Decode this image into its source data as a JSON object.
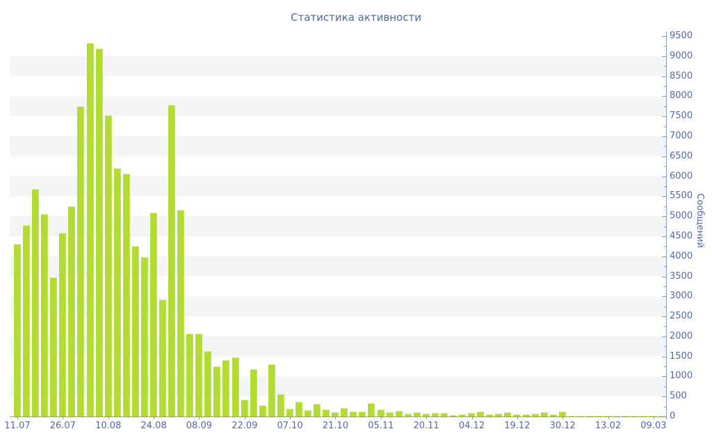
{
  "title": "Статистика активности",
  "colors": {
    "bar": "#b2dc33",
    "bar_highlight": "#cdea72",
    "text_blue": "#5168a8",
    "title_blue": "#4b68a7",
    "axis_line": "#8a97c0",
    "stripe": "#f5f5f7"
  },
  "chart_data": {
    "type": "bar",
    "title": "Статистика активности",
    "xlabel": "",
    "ylabel": "Сообщений",
    "ylim": [
      0,
      9500
    ],
    "y_tick_step": 500,
    "y_minor_tick_step": 250,
    "y_tick_labels": [
      "0",
      "500",
      "1000",
      "1500",
      "2000",
      "2500",
      "3000",
      "3500",
      "4000",
      "4500",
      "5000",
      "5500",
      "6000",
      "6500",
      "7000",
      "7500",
      "8000",
      "8500",
      "9000",
      "9500"
    ],
    "x_tick_labels": [
      "11.07",
      "26.07",
      "10.08",
      "24.08",
      "08.09",
      "22.09",
      "07.10",
      "21.10",
      "05.11",
      "20.11",
      "04.12",
      "19.12",
      "30.12",
      "13.02",
      "09.03"
    ],
    "x_label_every_n_bars": 5,
    "grid": "alternating horizontal bands of 500 units",
    "legend": "none",
    "values": [
      4300,
      4780,
      5680,
      5050,
      3470,
      4580,
      5240,
      7750,
      9330,
      9190,
      7520,
      6200,
      6060,
      4250,
      3980,
      5090,
      2920,
      7790,
      5160,
      2070,
      2060,
      1630,
      1250,
      1410,
      1480,
      420,
      1190,
      280,
      1300,
      560,
      200,
      370,
      160,
      310,
      170,
      110,
      210,
      130,
      130,
      330,
      170,
      110,
      140,
      70,
      100,
      70,
      90,
      90,
      40,
      50,
      80,
      120,
      60,
      70,
      100,
      60,
      60,
      70,
      100,
      60,
      120,
      20,
      15,
      20,
      20,
      20,
      20,
      20,
      15,
      20,
      15,
      20
    ]
  }
}
